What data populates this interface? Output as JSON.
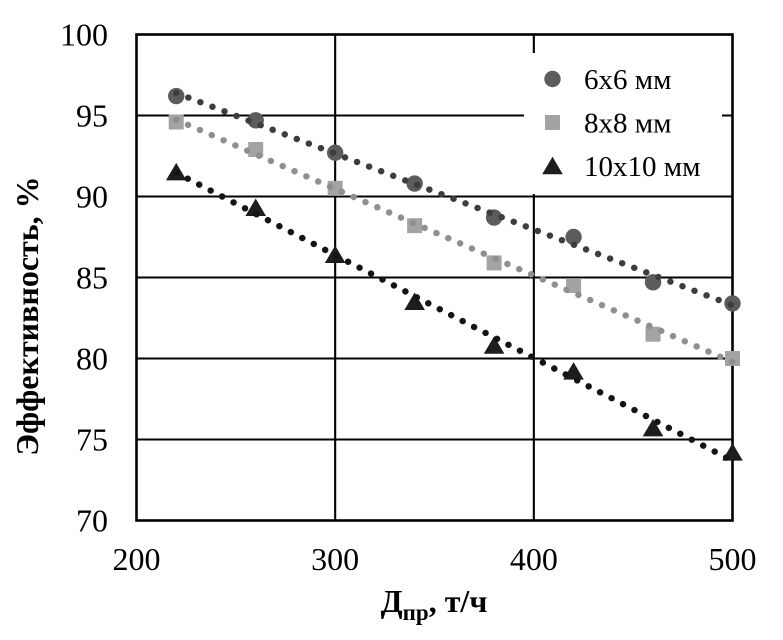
{
  "figure": {
    "background": "#ffffff",
    "axis_color": "#000000"
  },
  "chart_data": {
    "type": "scatter",
    "title": "",
    "ylabel": "Эффективность, %",
    "xlabel_prefix": "Д",
    "xlabel_subscript": "пр",
    "xlabel_suffix": ", т/ч",
    "xlim": [
      200,
      500
    ],
    "ylim": [
      70,
      100
    ],
    "xticks": [
      200,
      300,
      400,
      500
    ],
    "yticks": [
      100,
      95,
      90,
      85,
      80,
      75,
      70
    ],
    "grid": true,
    "legend_position": "top-right-inside",
    "trendlines": "linear-dotted",
    "x": [
      220,
      260,
      300,
      340,
      380,
      420,
      460,
      500
    ],
    "series": [
      {
        "name": "6x6 мм",
        "marker": "circle",
        "color": "#5c5c5c",
        "trend_color": "#3d3d3d",
        "values": [
          96.2,
          94.7,
          92.7,
          90.8,
          88.7,
          87.5,
          84.7,
          83.4
        ]
      },
      {
        "name": "8x8 мм",
        "marker": "square",
        "color": "#a3a3a3",
        "trend_color": "#8f8f8f",
        "values": [
          94.6,
          92.9,
          90.5,
          88.2,
          85.9,
          84.5,
          81.5,
          80.0
        ]
      },
      {
        "name": "10x10 мм",
        "marker": "triangle",
        "color": "#1d1d1d",
        "trend_color": "#141414",
        "values": [
          91.5,
          89.3,
          86.4,
          83.5,
          80.8,
          79.2,
          75.7,
          74.2
        ]
      }
    ]
  }
}
